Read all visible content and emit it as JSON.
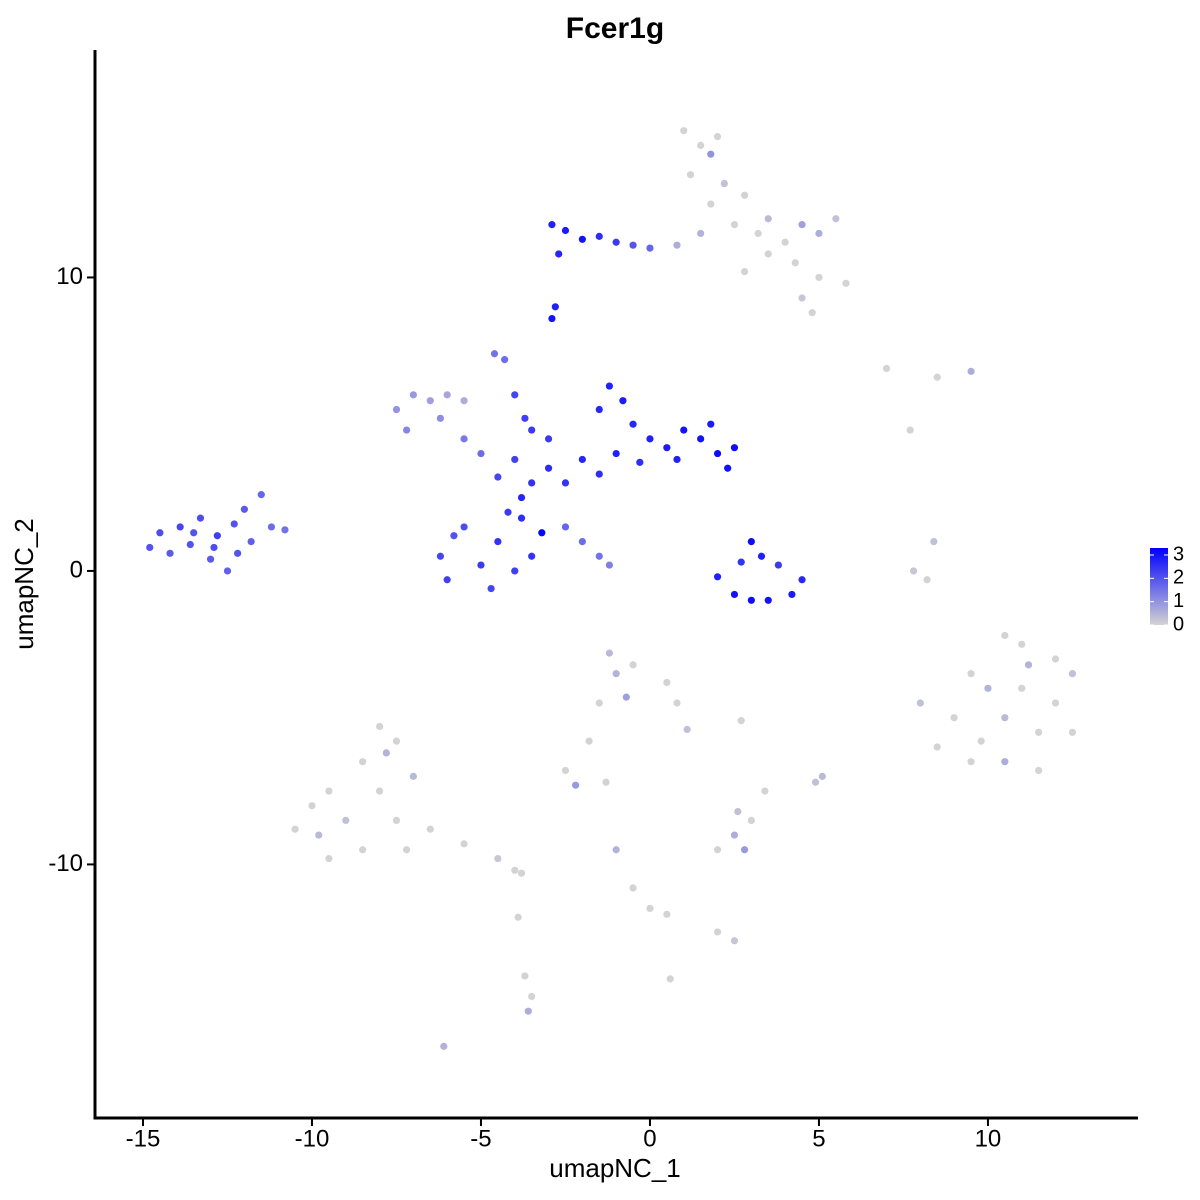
{
  "chart_data": {
    "type": "scatter",
    "title": "Fcer1g",
    "x_label": "umapNC_1",
    "y_label": "umapNC_2",
    "xlim": [
      -16.42,
      14.44
    ],
    "ylim": [
      -18.64,
      17.75
    ],
    "xticks": [
      -15,
      -10,
      -5,
      0,
      5,
      10
    ],
    "yticks": [
      -10,
      0,
      10
    ],
    "color_low": "#d3d3d3",
    "color_high": "#0000ff",
    "clim": [
      0,
      3.3
    ],
    "colorbar_ticks": [
      0,
      1,
      2,
      3
    ],
    "x": [
      -14.8,
      -14.5,
      -14.2,
      -13.9,
      -13.6,
      -13.3,
      -13.0,
      -12.8,
      -12.5,
      -12.3,
      -12.0,
      -11.8,
      -11.5,
      -11.2,
      -10.8,
      -13.5,
      -12.9,
      -12.2,
      -7.5,
      -7.0,
      -6.5,
      -7.2,
      -6.2,
      -5.5,
      -5.0,
      -6.0,
      -5.5,
      -4.6,
      -4.3,
      -4.0,
      -3.7,
      -3.5,
      -6.2,
      -6.0,
      -5.5,
      -5.0,
      -4.7,
      -4.5,
      -4.0,
      -3.8,
      -3.5,
      -3.8,
      -4.2,
      -3.2,
      -5.8,
      -3.5,
      -3.0,
      -2.5,
      -2.0,
      -1.5,
      -1.0,
      -4.0,
      -4.5,
      -3.0,
      -2.5,
      -2.0,
      -1.5,
      -1.2,
      -1.5,
      -1.2,
      -0.8,
      -0.5,
      0,
      0.5,
      1.0,
      1.5,
      2.0,
      2.3,
      2.5,
      -0.3,
      0.8,
      1.8,
      2.0,
      2.5,
      3.0,
      3.5,
      4.2,
      4.5,
      3.0,
      3.3,
      2.7,
      3.8,
      -2.9,
      -2.5,
      -2.0,
      -2.7,
      -1.5,
      -1.0,
      -0.5,
      0,
      -2.9,
      -2.8,
      1,
      1.5,
      2,
      1.2,
      2.2,
      1.8,
      2.8,
      3.2,
      1.5,
      2.5,
      3.5,
      4.0,
      4.5,
      5.0,
      5.5,
      4.3,
      5.0,
      5.8,
      4.5,
      4.8,
      3.5,
      2.8,
      0.8,
      1.8,
      7,
      8.5,
      9.5,
      7.7,
      8.4,
      7.8,
      8.2,
      10.5,
      11,
      12,
      12.5,
      9.5,
      10,
      11,
      12,
      9,
      10.5,
      11.5,
      12.5,
      8.5,
      9.5,
      10.5,
      11.5,
      8,
      11.2,
      9.8,
      -8,
      -7.5,
      -8.5,
      -9.5,
      -10,
      -10.5,
      -9,
      -8,
      -7,
      -7.5,
      -8.5,
      -9.5,
      -7.2,
      -7.8,
      -6.5,
      -5.5,
      -4.5,
      -4.0,
      -3.8,
      -9.8,
      -3.9,
      -3.7,
      -3.5,
      -3.6,
      -6.1,
      -1.2,
      -1.0,
      -0.5,
      -0.7,
      0.5,
      0.8,
      1.1,
      -1.5,
      -1.8,
      -2.5,
      -2.2,
      -1.3,
      -1.0,
      -0.5,
      0,
      0.5,
      2.0,
      2.5,
      0.6,
      2,
      2.5,
      2.8,
      3.0,
      2.6,
      2.7,
      3.4,
      4.9,
      5.1
    ],
    "y": [
      0.8,
      1.3,
      0.6,
      1.5,
      0.9,
      1.8,
      0.4,
      1.2,
      0.0,
      1.6,
      2.1,
      1.0,
      2.6,
      1.5,
      1.4,
      1.3,
      0.8,
      0.6,
      5.5,
      6.0,
      5.8,
      4.8,
      5.2,
      4.5,
      4.0,
      6.0,
      5.8,
      7.4,
      7.2,
      6.0,
      5.2,
      4.8,
      0.5,
      -0.3,
      1.5,
      0.2,
      -0.6,
      1.0,
      0.0,
      1.8,
      0.5,
      2.5,
      2.0,
      1.3,
      1.2,
      3.0,
      3.5,
      3.0,
      3.8,
      3.3,
      4.0,
      3.8,
      3.2,
      4.5,
      1.5,
      1.0,
      0.5,
      0.2,
      5.5,
      6.3,
      5.8,
      5.0,
      4.5,
      4.2,
      4.8,
      4.5,
      4.0,
      3.5,
      4.2,
      3.7,
      3.8,
      5.0,
      -0.2,
      -0.8,
      -1.0,
      -1.0,
      -0.8,
      -0.3,
      1.0,
      0.5,
      0.3,
      0.2,
      11.8,
      11.6,
      11.3,
      10.8,
      11.4,
      11.2,
      11.1,
      11.0,
      8.6,
      9.0,
      15,
      14.5,
      14.8,
      13.5,
      13.2,
      12.5,
      12.8,
      11.5,
      11.5,
      11.8,
      12.0,
      11.2,
      11.8,
      11.5,
      12.0,
      10.5,
      10.0,
      9.8,
      9.3,
      8.8,
      10.8,
      10.2,
      11.1,
      14.2,
      6.9,
      6.6,
      6.8,
      4.8,
      1.0,
      0,
      -0.3,
      -2.2,
      -2.5,
      -3,
      -3.5,
      -3.5,
      -4,
      -4,
      -4.5,
      -5,
      -5,
      -5.5,
      -5.5,
      -6,
      -6.5,
      -6.5,
      -6.8,
      -4.5,
      -3.2,
      -5.8,
      -5.3,
      -5.8,
      -6.5,
      -7.5,
      -8,
      -8.8,
      -8.5,
      -7.5,
      -7,
      -8.5,
      -9.5,
      -9.8,
      -9.5,
      -6.2,
      -8.8,
      -9.3,
      -9.8,
      -10.2,
      -10.3,
      -9,
      -11.8,
      -13.8,
      -14.5,
      -15.0,
      -16.2,
      -2.8,
      -3.5,
      -3.2,
      -4.3,
      -3.8,
      -4.5,
      -5.4,
      -4.5,
      -5.8,
      -6.8,
      -7.3,
      -7.2,
      -9.5,
      -10.8,
      -11.5,
      -11.7,
      -12.3,
      -12.6,
      -13.9,
      -9.5,
      -9,
      -9.5,
      -8.5,
      -8.2,
      -5.1,
      -7.5,
      -7.2,
      -7
    ],
    "values": [
      2,
      2.1,
      1.9,
      2.2,
      2,
      2.1,
      1.9,
      2.3,
      1.8,
      2,
      1.9,
      1.8,
      1.7,
      1.6,
      1.5,
      2,
      2.1,
      2,
      1.0,
      0.9,
      0.8,
      1.2,
      1.1,
      1.4,
      1.6,
      0.7,
      0.6,
      1.5,
      1.6,
      2.2,
      2.3,
      2.4,
      2.2,
      2.3,
      2.1,
      2.4,
      2.2,
      2.5,
      2.3,
      2.6,
      2.5,
      2.7,
      2.4,
      3.2,
      2.0,
      2.5,
      2.6,
      2.5,
      2.7,
      2.6,
      2.8,
      2.3,
      2.2,
      2.4,
      1.7,
      1.6,
      1.5,
      1.3,
      2.7,
      2.8,
      2.9,
      2.7,
      2.8,
      2.9,
      3.0,
      3.0,
      3.1,
      3.0,
      3.1,
      2.6,
      2.8,
      2.9,
      2.8,
      3.0,
      3.1,
      3.0,
      2.9,
      2.7,
      3.1,
      2.8,
      2.5,
      2.4,
      2.8,
      2.9,
      3.0,
      2.7,
      2.6,
      2.4,
      2.0,
      1.7,
      3.0,
      2.8,
      0,
      0,
      0,
      0,
      0.3,
      0,
      0,
      0,
      0.5,
      0,
      0.4,
      0,
      0.8,
      0.6,
      0.3,
      0,
      0,
      0,
      0.2,
      0,
      0,
      0,
      0.6,
      1.0,
      0,
      0,
      0.6,
      0,
      0.3,
      0.2,
      0,
      0,
      0,
      0,
      0.3,
      0,
      0.5,
      0,
      0,
      0,
      0.4,
      0,
      0,
      0,
      0,
      0.6,
      0,
      0.3,
      0.5,
      0,
      0,
      0,
      0,
      0,
      0,
      0,
      0.3,
      0,
      0.4,
      0,
      0,
      0,
      0,
      0.5,
      0,
      0,
      0.2,
      0,
      0,
      0.4,
      0,
      0,
      0,
      0.6,
      0.5,
      0.4,
      0.5,
      0,
      0.8,
      0,
      0,
      0.3,
      0,
      0,
      0,
      0.9,
      0,
      0.5,
      0,
      0,
      0,
      0,
      0.2,
      0,
      0,
      0.6,
      0.9,
      0,
      0.3,
      0,
      0,
      0.3,
      0.4
    ]
  }
}
